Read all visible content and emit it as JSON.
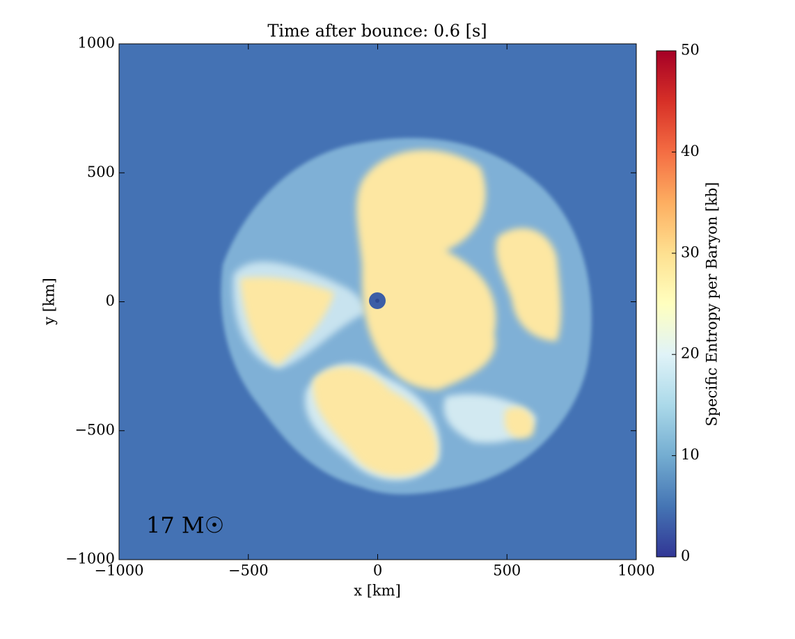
{
  "chart_data": {
    "type": "heatmap",
    "title": "Time after bounce: 0.6 [s]",
    "xlabel": "x [km]",
    "ylabel": "y [km]",
    "xlim": [
      -1000,
      1000
    ],
    "ylim": [
      -1000,
      1000
    ],
    "xticks": [
      {
        "value": -1000,
        "label": "−1000"
      },
      {
        "value": -500,
        "label": "−500"
      },
      0,
      500,
      1000
    ],
    "yticks": [
      {
        "value": -1000,
        "label": "−1000"
      },
      {
        "value": -500,
        "label": "−500"
      },
      0,
      500,
      1000
    ],
    "colorbar_label": "Specific Entropy per Baryon [kb]",
    "clim": [
      0,
      50
    ],
    "cticks": [
      0,
      10,
      20,
      30,
      40,
      50
    ],
    "annotation": "17 M☉"
  }
}
